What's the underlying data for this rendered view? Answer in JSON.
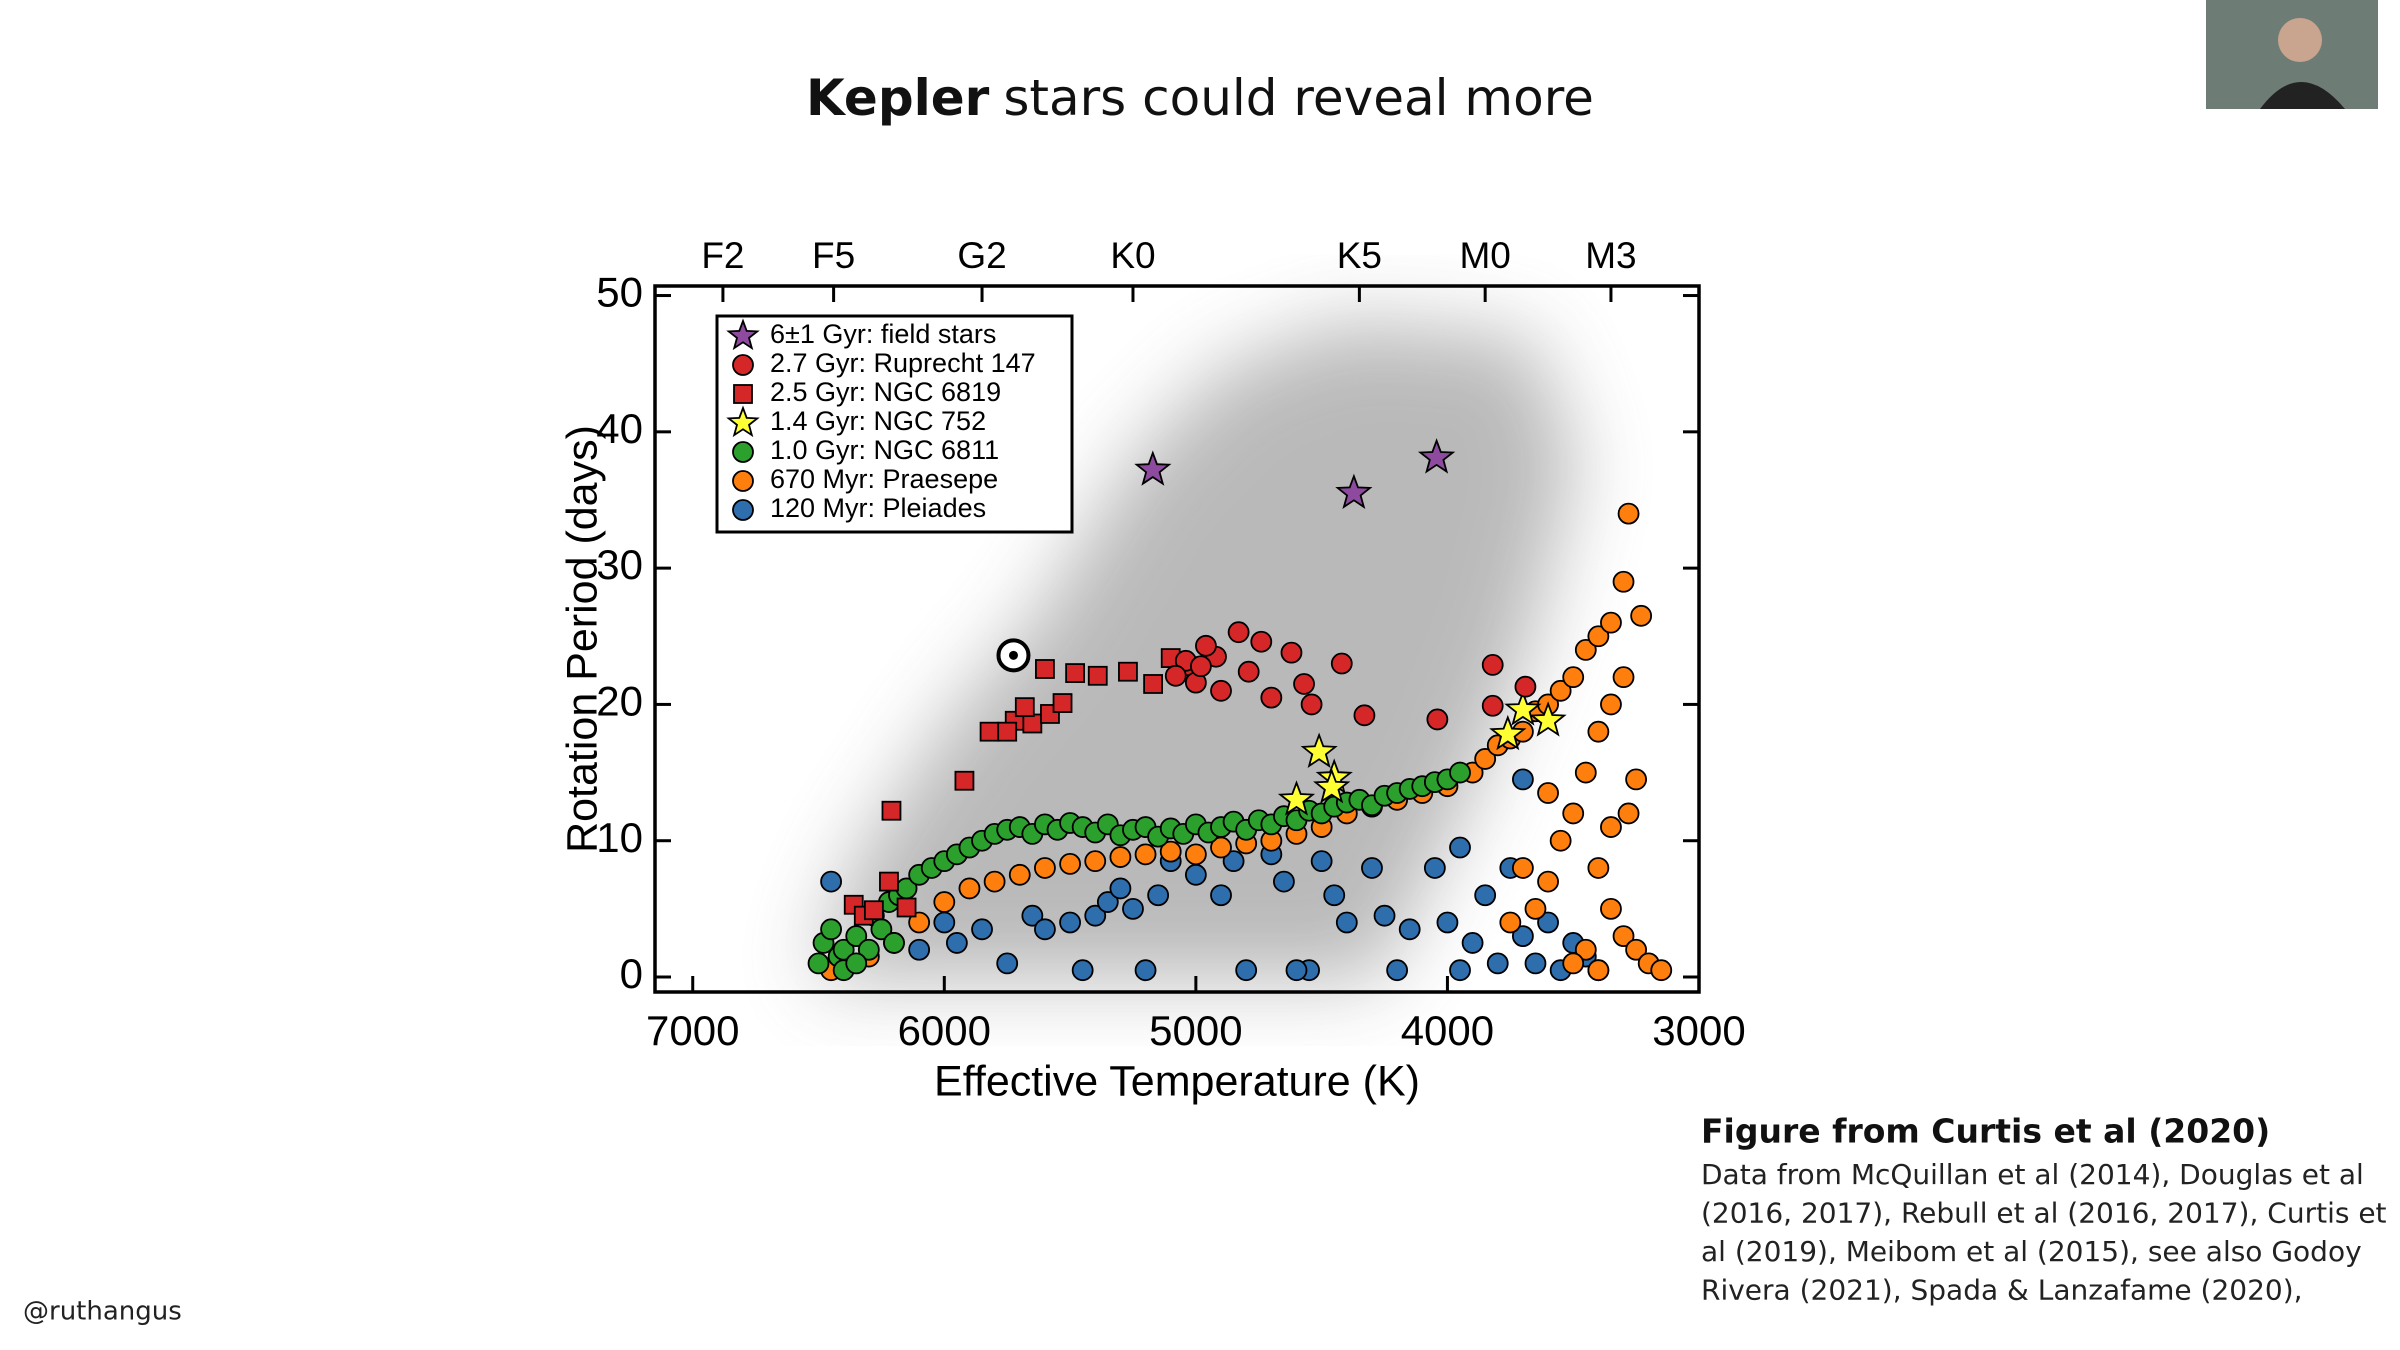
{
  "slide": {
    "title_bold": "Kepler",
    "title": "stars could reveal more",
    "caption_title": "Figure from Curtis et al (2020)",
    "caption_lines": [
      "Data from McQuillan et al (2014), Douglas et al",
      "(2016, 2017), Rebull et al (2016, 2017),  Curtis et",
      "al (2019), Meibom et al (2015), see also Godoy",
      "Rivera (2021), Spada & Lanzafame (2020),"
    ],
    "handle": "@ruthangus"
  },
  "chart_data": {
    "type": "scatter",
    "xlabel": "Effective Temperature (K)",
    "ylabel": "Rotation Period (days)",
    "xlim": [
      7150,
      3000
    ],
    "ylim": [
      -1.1,
      50.7
    ],
    "xticks": [
      7000,
      6000,
      5000,
      4000,
      3000
    ],
    "yticks": [
      0,
      10,
      20,
      30,
      40,
      50
    ],
    "x2ticks": [
      {
        "value": 6880,
        "label": "F2"
      },
      {
        "value": 6440,
        "label": "F5"
      },
      {
        "value": 5850,
        "label": "G2"
      },
      {
        "value": 5250,
        "label": "K0"
      },
      {
        "value": 4350,
        "label": "K5"
      },
      {
        "value": 3850,
        "label": "M0"
      },
      {
        "value": 3350,
        "label": "M3"
      }
    ],
    "legend": "upper left",
    "sun": {
      "x": 5725,
      "y": 23.6
    },
    "series": [
      {
        "name": "6±1 Gyr: field stars",
        "marker": "star",
        "color": "#8e4a9f",
        "x": [
          5171,
          4372,
          4043
        ],
        "values": [
          37.2,
          35.5,
          38.1
        ]
      },
      {
        "name": "2.7 Gyr: Ruprecht 147",
        "marker": "circle",
        "color": "#d62728",
        "x": [
          4830,
          4740,
          4620,
          4420,
          4790,
          4700,
          4540,
          4330,
          4040,
          3820,
          3690,
          3820,
          4920,
          4960,
          5040,
          5080,
          5000,
          4980,
          4900,
          4570
        ],
        "values": [
          25.3,
          24.6,
          23.8,
          23.0,
          22.4,
          20.5,
          20.0,
          19.2,
          18.9,
          22.9,
          21.3,
          19.9,
          23.5,
          24.3,
          23.2,
          22.1,
          21.6,
          22.8,
          21.0,
          21.5
        ]
      },
      {
        "name": "2.5 Gyr: NGC 6819",
        "marker": "square",
        "color": "#d62728",
        "x": [
          6210,
          5920,
          5820,
          5720,
          5650,
          5580,
          5530,
          5600,
          5480,
          5390,
          5270,
          5170,
          5100,
          5020,
          5680,
          6360,
          6320,
          6280,
          6220,
          6150,
          5750
        ],
        "values": [
          12.2,
          14.4,
          18.0,
          18.8,
          18.6,
          19.3,
          20.1,
          22.6,
          22.3,
          22.1,
          22.4,
          21.5,
          23.4,
          22.8,
          19.8,
          5.3,
          4.5,
          4.9,
          7.0,
          5.1,
          18.0
        ]
      },
      {
        "name": "1.4 Gyr: NGC 752",
        "marker": "star",
        "color": "#ffff33",
        "x": [
          4510,
          4450,
          4460,
          4600,
          3700,
          3760,
          3600
        ],
        "values": [
          16.5,
          14.6,
          13.9,
          13.0,
          19.6,
          17.8,
          18.8
        ]
      },
      {
        "name": "1.0 Gyr: NGC 6811",
        "marker": "circle",
        "color": "#2ca02c",
        "x": [
          6500,
          6480,
          6450,
          6420,
          6400,
          6350,
          6300,
          6280,
          6250,
          6220,
          6180,
          6150,
          6100,
          6050,
          6000,
          5950,
          5900,
          5850,
          5800,
          5750,
          5700,
          5650,
          5600,
          5550,
          5500,
          5450,
          5400,
          5350,
          5300,
          5250,
          5200,
          5150,
          5100,
          5050,
          5000,
          4950,
          4900,
          4850,
          4800,
          4750,
          4700,
          4650,
          4600,
          4550,
          4500,
          4450,
          4400,
          4350,
          4300,
          4250,
          4200,
          4150,
          4100,
          4050,
          4000,
          3950,
          6400,
          6350,
          6200
        ],
        "values": [
          1.0,
          2.5,
          3.5,
          1.5,
          2.0,
          3.0,
          2.0,
          4.5,
          3.5,
          5.5,
          6.0,
          6.5,
          7.5,
          8.0,
          8.5,
          9.0,
          9.5,
          10.0,
          10.5,
          10.8,
          11.0,
          10.5,
          11.2,
          10.8,
          11.3,
          11.0,
          10.6,
          11.2,
          10.4,
          10.8,
          11.0,
          10.3,
          10.9,
          10.5,
          11.2,
          10.6,
          11.0,
          11.4,
          10.8,
          11.5,
          11.2,
          11.8,
          11.5,
          12.2,
          12.0,
          12.5,
          12.8,
          13.0,
          12.6,
          13.3,
          13.5,
          13.8,
          14.0,
          14.3,
          14.5,
          15.0,
          0.5,
          1.0,
          2.5
        ]
      },
      {
        "name": "670 Myr: Praesepe",
        "marker": "circle",
        "color": "#ff7f0e",
        "x": [
          6450,
          6300,
          6200,
          6100,
          6000,
          5900,
          5800,
          5700,
          5600,
          5500,
          5400,
          5300,
          5200,
          5100,
          5000,
          4900,
          4800,
          4700,
          4600,
          4500,
          4400,
          4300,
          4200,
          4100,
          4000,
          3900,
          3850,
          3800,
          3750,
          3700,
          3650,
          3600,
          3550,
          3500,
          3450,
          3400,
          3350,
          3300,
          3280,
          3230,
          3300,
          3350,
          3400,
          3450,
          3500,
          3550,
          3600,
          3650,
          3400,
          3350,
          3300,
          3250,
          3200,
          3450,
          3500,
          3150,
          3280,
          3250,
          3600,
          3700,
          3750,
          3400,
          3350
        ],
        "values": [
          0.5,
          1.5,
          2.5,
          4.0,
          5.5,
          6.5,
          7.0,
          7.5,
          8.0,
          8.3,
          8.5,
          8.8,
          9.0,
          9.2,
          9.0,
          9.5,
          9.8,
          10.0,
          10.5,
          11.0,
          12.0,
          12.5,
          13.0,
          13.5,
          14.0,
          15.0,
          16.0,
          17.0,
          17.5,
          18.0,
          19.5,
          20.0,
          21.0,
          22.0,
          24.0,
          25.0,
          26.0,
          29.0,
          34.0,
          26.5,
          22.0,
          20.0,
          18.0,
          15.0,
          12.0,
          10.0,
          7.0,
          5.0,
          8.0,
          5.0,
          3.0,
          2.0,
          1.0,
          2.0,
          1.0,
          0.5,
          12.0,
          14.5,
          13.5,
          8.0,
          4.0,
          0.5,
          11.0
        ]
      },
      {
        "name": "120 Myr: Pleiades",
        "marker": "circle",
        "color": "#2e6ead",
        "x": [
          6450,
          6400,
          6100,
          6000,
          5950,
          5850,
          5750,
          5650,
          5600,
          5500,
          5450,
          5400,
          5350,
          5300,
          5250,
          5200,
          5150,
          5100,
          5000,
          4900,
          4850,
          4800,
          4700,
          4650,
          4550,
          4500,
          4450,
          4400,
          4300,
          4250,
          4200,
          4150,
          4050,
          4000,
          3950,
          3900,
          3850,
          3800,
          3750,
          3700,
          3650,
          3600,
          3550,
          3500,
          3450,
          3400,
          3700,
          3950,
          4600
        ],
        "values": [
          7.0,
          1.0,
          2.0,
          4.0,
          2.5,
          3.5,
          1.0,
          4.5,
          3.5,
          4.0,
          0.5,
          4.5,
          5.5,
          6.5,
          5.0,
          0.5,
          6.0,
          8.5,
          7.5,
          6.0,
          8.5,
          0.5,
          9.0,
          7.0,
          0.5,
          8.5,
          6.0,
          4.0,
          8.0,
          4.5,
          0.5,
          3.5,
          8.0,
          4.0,
          9.5,
          2.5,
          6.0,
          1.0,
          8.0,
          3.0,
          1.0,
          4.0,
          0.5,
          2.5,
          1.5,
          0.5,
          14.5,
          0.5,
          0.5
        ]
      }
    ]
  }
}
